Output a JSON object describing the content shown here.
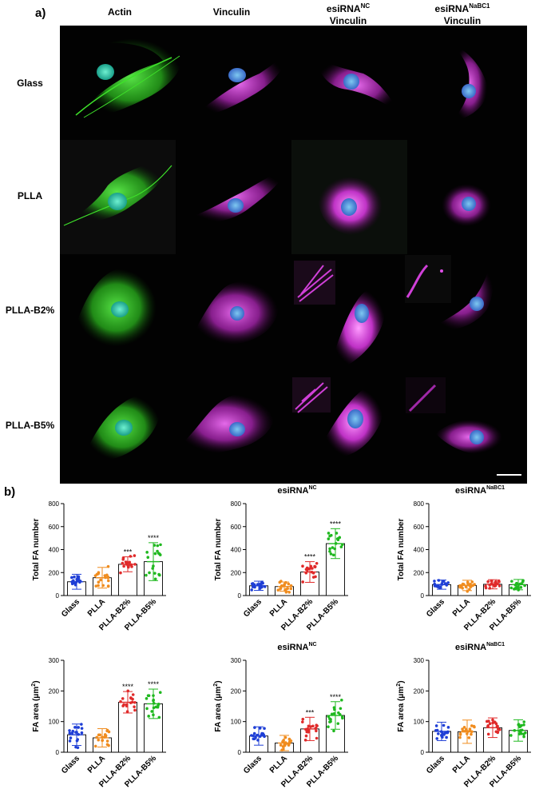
{
  "panel_a": {
    "label": "a)",
    "column_headers": [
      {
        "line1": "",
        "line2": "Actin"
      },
      {
        "line1": "",
        "line2": "Vinculin"
      },
      {
        "line1": "esiRNA",
        "sup1": "NC",
        "line2": "Vinculin"
      },
      {
        "line1": "esiRNA",
        "sup1": "NaBC1",
        "line2": "Vinculin"
      }
    ],
    "row_labels": [
      "Glass",
      "PLLA",
      "PLLA-B2%",
      "PLLA-B5%"
    ],
    "colors": {
      "actin": "#33dd22",
      "vinculin": "#e040e8",
      "nucleus": "#3aa0d8",
      "background": "#020202"
    }
  },
  "panel_b": {
    "label": "b)",
    "chart_data": [
      {
        "type": "bar",
        "title": "",
        "title_sup": "",
        "ylabel": "Total  FA number",
        "ylabel_sup": "",
        "ylim": [
          0,
          800
        ],
        "yticks": [
          0,
          200,
          400,
          600,
          800
        ],
        "categories": [
          "Glass",
          "PLLA",
          "PLLA-B2%",
          "PLLA-B5%"
        ],
        "values": [
          120,
          155,
          272,
          295
        ],
        "sd": [
          65,
          90,
          65,
          165
        ],
        "significance": [
          "",
          "",
          "***",
          "****"
        ],
        "colors": [
          "#1f3fd6",
          "#f08c1e",
          "#e02a2a",
          "#1fb81f"
        ]
      },
      {
        "type": "bar",
        "title": "esiRNA",
        "title_sup": "NC",
        "ylabel": "Total FA number",
        "ylabel_sup": "",
        "ylim": [
          0,
          800
        ],
        "yticks": [
          0,
          200,
          400,
          600,
          800
        ],
        "categories": [
          "Glass",
          "PLLA",
          "PLLA-B2%",
          "PLLA-B5%"
        ],
        "values": [
          85,
          78,
          205,
          452
        ],
        "sd": [
          40,
          40,
          90,
          130
        ],
        "significance": [
          "",
          "",
          "****",
          "****"
        ],
        "colors": [
          "#1f3fd6",
          "#f08c1e",
          "#e02a2a",
          "#1fb81f"
        ]
      },
      {
        "type": "bar",
        "title": "esiRNA",
        "title_sup": "NaBC1",
        "ylabel": "Total FA number",
        "ylabel_sup": "",
        "ylim": [
          0,
          800
        ],
        "yticks": [
          0,
          200,
          400,
          600,
          800
        ],
        "categories": [
          "Glass",
          "PLLA",
          "PLLA-B2%",
          "PLLA-B5%"
        ],
        "values": [
          95,
          88,
          98,
          95
        ],
        "sd": [
          40,
          45,
          40,
          45
        ],
        "significance": [
          "",
          "",
          "",
          ""
        ],
        "colors": [
          "#1f3fd6",
          "#f08c1e",
          "#e02a2a",
          "#1fb81f"
        ]
      },
      {
        "type": "bar",
        "title": "",
        "title_sup": "",
        "ylabel": "FA area (μm",
        "ylabel_sup": "2",
        "ylabel_end": ")",
        "ylim": [
          0,
          300
        ],
        "yticks": [
          0,
          100,
          200,
          300
        ],
        "categories": [
          "Glass",
          "PLLA",
          "PLLA-B2%",
          "PLLA-B5%"
        ],
        "values": [
          57,
          47,
          163,
          158
        ],
        "sd": [
          35,
          30,
          35,
          48
        ],
        "significance": [
          "",
          "",
          "****",
          "****"
        ],
        "colors": [
          "#1f3fd6",
          "#f08c1e",
          "#e02a2a",
          "#1fb81f"
        ]
      },
      {
        "type": "bar",
        "title": "esiRNA",
        "title_sup": "NC",
        "ylabel": "FA area (μm",
        "ylabel_sup": "2",
        "ylabel_end": ")",
        "ylim": [
          0,
          300
        ],
        "yticks": [
          0,
          100,
          200,
          300
        ],
        "categories": [
          "Glass",
          "PLLA",
          "PLLA-B2%",
          "PLLA-B5%"
        ],
        "values": [
          53,
          30,
          76,
          120
        ],
        "sd": [
          30,
          25,
          38,
          45
        ],
        "significance": [
          "",
          "",
          "***",
          "****"
        ],
        "colors": [
          "#1f3fd6",
          "#f08c1e",
          "#e02a2a",
          "#1fb81f"
        ]
      },
      {
        "type": "bar",
        "title": "esiRNA",
        "title_sup": "NaBC1",
        "ylabel": "FA area (μm",
        "ylabel_sup": "2",
        "ylabel_end": ")",
        "ylim": [
          0,
          300
        ],
        "yticks": [
          0,
          100,
          200,
          300
        ],
        "categories": [
          "Glass",
          "PLLA",
          "PLLA-B2%",
          "PLLA-B5%"
        ],
        "values": [
          68,
          67,
          80,
          71
        ],
        "sd": [
          30,
          38,
          32,
          35
        ],
        "significance": [
          "",
          "",
          "",
          ""
        ],
        "colors": [
          "#1f3fd6",
          "#f08c1e",
          "#e02a2a",
          "#1fb81f"
        ]
      }
    ]
  }
}
